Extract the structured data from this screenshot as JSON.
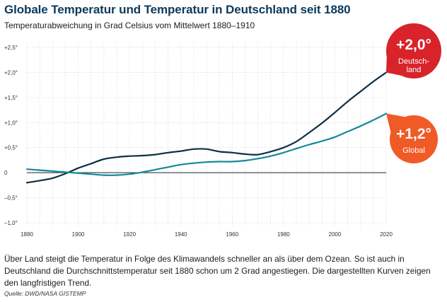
{
  "header": {
    "title": "Globale Temperatur und Temperatur in Deutschland seit 1880",
    "subtitle": "Temperaturabweichung in Grad Celsius vom Mittelwert 1880–1910"
  },
  "caption": "Über Land steigt die Temperatur in Folge des Klimawandels schneller an als über dem Ozean. So ist auch in Deutschland die Durchschnittstemperatur seit 1880 schon um 2 Grad angestiegen. Die dargestellten Kurven zeigen den langfristigen Trend.",
  "source": "Quelle: DWD/NASA GISTEMP",
  "colors": {
    "title": "#0d3a5c",
    "grid": "#d0d0d0",
    "zero_line": "#222222",
    "germany_line": "#0f2f45",
    "global_line": "#138a96",
    "bubble_red": "#d8232a",
    "bubble_orange": "#f05a26"
  },
  "chart_data": {
    "type": "line",
    "title": "Globale Temperatur und Temperatur in Deutschland seit 1880",
    "subtitle": "Temperaturabweichung in Grad Celsius vom Mittelwert 1880–1910",
    "xlim": [
      1880,
      2020
    ],
    "ylim": [
      -1.1,
      2.6
    ],
    "x_ticks": [
      "1880",
      "1900",
      "1920",
      "1940",
      "1960",
      "1980",
      "2000",
      "2020"
    ],
    "x_tick_values": [
      1880,
      1900,
      1920,
      1940,
      1960,
      1980,
      2000,
      2020
    ],
    "y_ticks": [
      "+2,5°",
      "+2,0°",
      "+1,5°",
      "+1,0°",
      "+0,5°",
      "0",
      "–0,5°",
      "–1,0°"
    ],
    "y_tick_values": [
      2.5,
      2.0,
      1.5,
      1.0,
      0.5,
      0,
      -0.5,
      -1.0
    ],
    "grid": true,
    "x": [
      1880,
      1885,
      1890,
      1895,
      1900,
      1905,
      1910,
      1915,
      1920,
      1925,
      1930,
      1935,
      1940,
      1945,
      1950,
      1955,
      1960,
      1965,
      1970,
      1975,
      1980,
      1985,
      1990,
      1995,
      2000,
      2005,
      2010,
      2015,
      2020
    ],
    "series": [
      {
        "key": "germany",
        "values": [
          -0.2,
          -0.16,
          -0.11,
          -0.02,
          0.09,
          0.18,
          0.27,
          0.31,
          0.33,
          0.34,
          0.36,
          0.4,
          0.43,
          0.47,
          0.47,
          0.42,
          0.4,
          0.37,
          0.36,
          0.42,
          0.5,
          0.62,
          0.8,
          0.99,
          1.2,
          1.42,
          1.62,
          1.82,
          2.0
        ],
        "end_label": "+2,0°",
        "end_sublabel": "Deutsch-\nland"
      },
      {
        "key": "global",
        "values": [
          0.07,
          0.05,
          0.03,
          0.01,
          -0.01,
          -0.03,
          -0.05,
          -0.05,
          -0.03,
          0.01,
          0.06,
          0.11,
          0.16,
          0.19,
          0.21,
          0.22,
          0.22,
          0.24,
          0.28,
          0.33,
          0.4,
          0.48,
          0.56,
          0.63,
          0.71,
          0.82,
          0.93,
          1.05,
          1.18
        ],
        "end_label": "+1,2°",
        "end_sublabel": "Global"
      }
    ]
  }
}
